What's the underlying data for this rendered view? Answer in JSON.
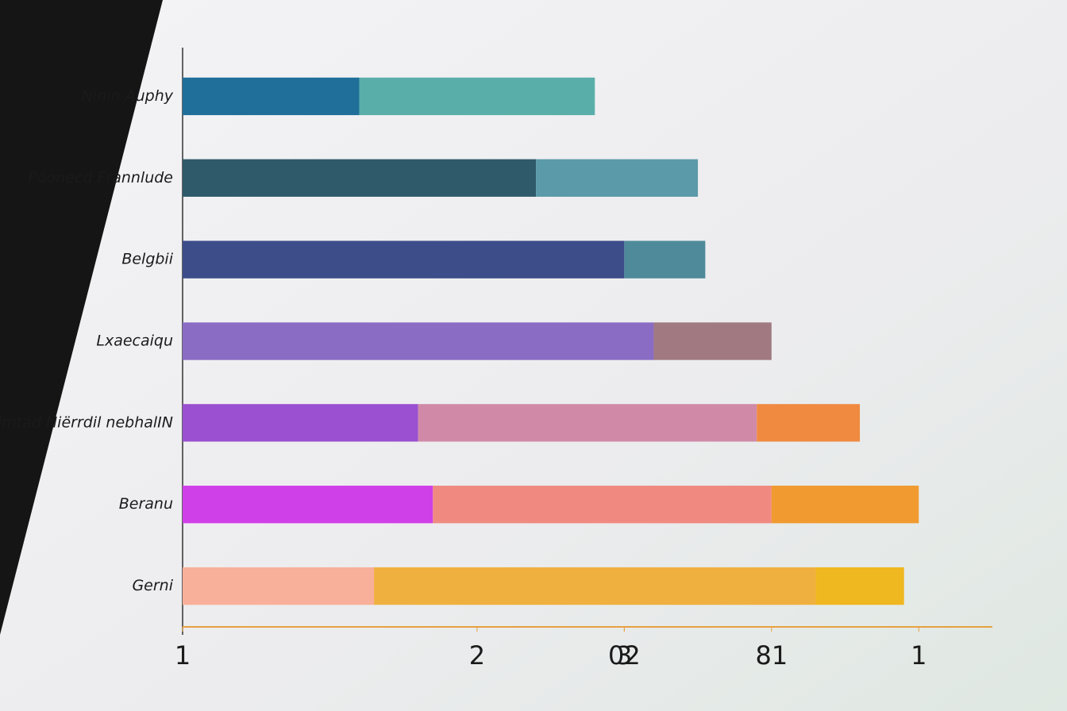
{
  "chart_data": {
    "type": "stacked-barh",
    "categories": [
      "Ninın Auphy",
      "Pòonecd Frannlude",
      "Belgbii",
      "Lxaecaiqu",
      "Nimtad Niërrdil nebhalIN",
      "Beranu",
      "Gerni"
    ],
    "series": [
      {
        "values": [
          1.2,
          2.4,
          3.0,
          3.2,
          1.6,
          1.7,
          1.3
        ],
        "colors": [
          "#1f6f9a",
          "#2f5a6a",
          "#3d4d8a",
          "#8a6cc4",
          "#9a50d0",
          "#d040e8",
          "#f8b09a"
        ]
      },
      {
        "values": [
          1.6,
          1.1,
          0.55,
          0.8,
          2.3,
          2.3,
          3.0
        ],
        "colors": [
          "#5aaeaa",
          "#5b9aa8",
          "#4e8a9a",
          "#a07a80",
          "#d08aa8",
          "#f08a80",
          "#f0b040"
        ]
      },
      {
        "values": [
          null,
          null,
          null,
          null,
          0.7,
          1.0,
          0.6
        ],
        "colors": [
          null,
          null,
          null,
          null,
          "#f08a40",
          "#f09a30",
          "#f0b820"
        ]
      }
    ],
    "xlim": [
      0,
      5.5
    ],
    "xticks": [
      {
        "value": 0,
        "label": "1"
      },
      2,
      3,
      {
        "value": 3,
        "label": "02"
      },
      {
        "value": 4,
        "label": "81"
      },
      {
        "value": 5,
        "label": "1"
      }
    ],
    "axis_color": "#e8a040"
  }
}
